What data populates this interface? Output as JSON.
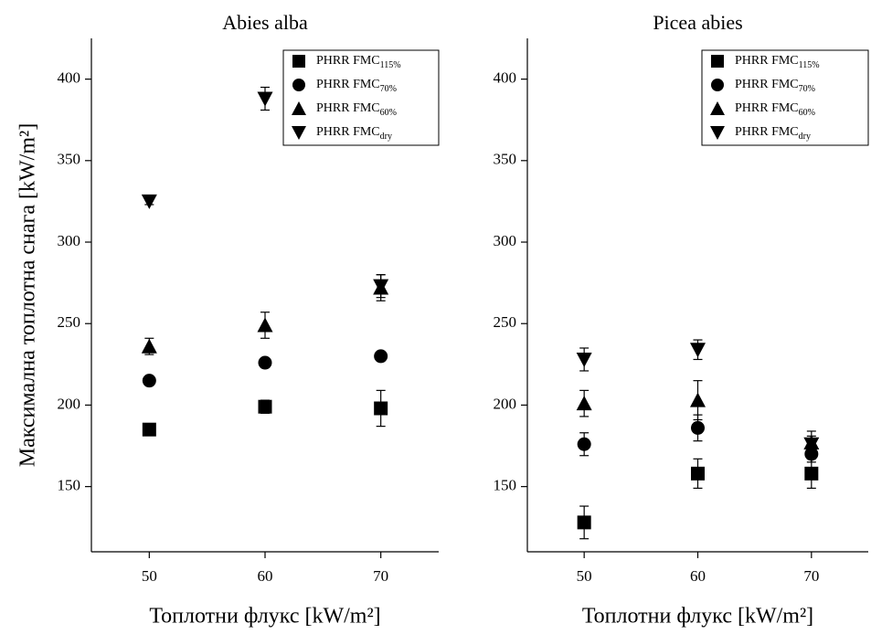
{
  "chart_data": [
    {
      "type": "scatter",
      "title": "Abies alba",
      "y_label": "Максимална топлотна снага [kW/m²]",
      "x_label": "Топлотни флукс [kW/m²]",
      "x": [
        50,
        60,
        70
      ],
      "xlim": [
        45,
        75
      ],
      "xticks": [
        50,
        60,
        70
      ],
      "ylim": [
        110,
        425
      ],
      "yticks": [
        150,
        200,
        250,
        300,
        350,
        400
      ],
      "legend": "upper right",
      "series": [
        {
          "name": "PHRR FMC",
          "subscript": "115%",
          "marker": "square",
          "color": "#000000",
          "values": [
            185,
            199,
            198
          ],
          "errors": [
            3,
            4,
            11
          ]
        },
        {
          "name": "PHRR FMC",
          "subscript": "70%",
          "marker": "circle",
          "color": "#000000",
          "values": [
            215,
            226,
            230
          ],
          "errors": [
            2,
            2,
            2
          ]
        },
        {
          "name": "PHRR FMC",
          "subscript": "60%",
          "marker": "triangle-up",
          "color": "#000000",
          "values": [
            236,
            249,
            272
          ],
          "errors": [
            5,
            8,
            8
          ]
        },
        {
          "name": "PHRR FMC",
          "subscript": "dry",
          "marker": "triangle-down",
          "color": "#000000",
          "values": [
            325,
            388,
            273
          ],
          "errors": [
            2,
            7,
            7
          ]
        }
      ]
    },
    {
      "type": "scatter",
      "title": "Picea abies",
      "x_label": "Топлотни флукс [kW/m²]",
      "x": [
        50,
        60,
        70
      ],
      "xlim": [
        45,
        75
      ],
      "xticks": [
        50,
        60,
        70
      ],
      "ylim": [
        110,
        425
      ],
      "yticks": [
        150,
        200,
        250,
        300,
        350,
        400
      ],
      "legend": "upper right",
      "series": [
        {
          "name": "PHRR FMC",
          "subscript": "115%",
          "marker": "square",
          "color": "#000000",
          "values": [
            128,
            158,
            158
          ],
          "errors": [
            10,
            9,
            9
          ]
        },
        {
          "name": "PHRR FMC",
          "subscript": "70%",
          "marker": "circle",
          "color": "#000000",
          "values": [
            176,
            186,
            170
          ],
          "errors": [
            7,
            8,
            5
          ]
        },
        {
          "name": "PHRR FMC",
          "subscript": "60%",
          "marker": "triangle-up",
          "color": "#000000",
          "values": [
            201,
            203,
            177
          ],
          "errors": [
            8,
            12,
            7
          ]
        },
        {
          "name": "PHRR FMC",
          "subscript": "dry",
          "marker": "triangle-down",
          "color": "#000000",
          "values": [
            228,
            234,
            176
          ],
          "errors": [
            7,
            6,
            5
          ]
        }
      ]
    }
  ]
}
